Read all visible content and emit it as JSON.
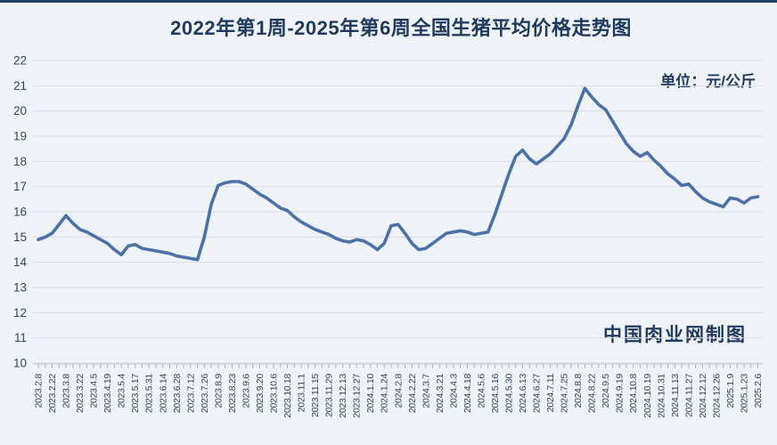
{
  "chart_data": {
    "type": "line",
    "title": "2022年第1周-2025年第6周全国生猪平均价格走势图",
    "unit_label": "单位：元/公斤",
    "watermark": "中国肉业网制图",
    "ylabel": "",
    "xlabel": "",
    "ylim": [
      10,
      22
    ],
    "yticks": [
      22,
      21,
      20,
      19,
      18,
      17,
      16,
      15,
      14,
      13,
      12,
      11,
      10
    ],
    "grid": true,
    "legend": "none",
    "x_label_every": 2,
    "x_labels": [
      "2023.2.8",
      "2023.2.22",
      "2023.3.8",
      "2023.3.22",
      "2023.4.5",
      "2023.4.19",
      "2023.5.4",
      "2023.5.17",
      "2023.5.31",
      "2023.6.14",
      "2023.6.28",
      "2023.7.12",
      "2023.7.26",
      "2023.8.9",
      "2023.8.23",
      "2023.9.6",
      "2023.9.20",
      "2023.10.6",
      "2023.10.18",
      "2023.11.1",
      "2023.11.15",
      "2023.11.29",
      "2023.12.13",
      "2023.12.27",
      "2024.1.10",
      "2024.1.24",
      "2024.2.8",
      "2024.2.22",
      "2024.3.7",
      "2024.3.21",
      "2024.4.3",
      "2024.4.18",
      "2024.5.6",
      "2024.5.16",
      "2024.5.30",
      "2024.6.13",
      "2024.6.27",
      "2024.7.11",
      "2024.7.25",
      "2024.8.8",
      "2024.8.22",
      "2024.9.5",
      "2024.9.19",
      "2024.10.8",
      "2024.10.19",
      "2024.10.31",
      "2024.11.13",
      "2024.11.27",
      "2024.12.12",
      "2024.12.26",
      "2025.1.9",
      "2025.1.23",
      "2025.2.6"
    ],
    "series": [
      {
        "name": "全国生猪平均价格",
        "unit": "元/公斤",
        "values": [
          14.9,
          15.0,
          15.15,
          15.5,
          15.85,
          15.55,
          15.3,
          15.2,
          15.05,
          14.9,
          14.75,
          14.5,
          14.3,
          14.65,
          14.7,
          14.55,
          14.5,
          14.45,
          14.4,
          14.35,
          14.25,
          14.2,
          14.15,
          14.1,
          15.0,
          16.3,
          17.05,
          17.15,
          17.2,
          17.2,
          17.1,
          16.9,
          16.7,
          16.55,
          16.35,
          16.15,
          16.05,
          15.8,
          15.6,
          15.45,
          15.3,
          15.2,
          15.1,
          14.95,
          14.85,
          14.8,
          14.9,
          14.85,
          14.7,
          14.5,
          14.75,
          15.45,
          15.5,
          15.15,
          14.75,
          14.5,
          14.55,
          14.75,
          14.95,
          15.15,
          15.2,
          15.25,
          15.2,
          15.1,
          15.15,
          15.2,
          15.9,
          16.7,
          17.5,
          18.2,
          18.45,
          18.1,
          17.9,
          18.1,
          18.3,
          18.6,
          18.9,
          19.45,
          20.2,
          20.9,
          20.55,
          20.25,
          20.05,
          19.6,
          19.15,
          18.7,
          18.4,
          18.2,
          18.35,
          18.05,
          17.8,
          17.5,
          17.3,
          17.05,
          17.1,
          16.8,
          16.55,
          16.4,
          16.3,
          16.2,
          16.55,
          16.5,
          16.35,
          16.55,
          16.6
        ]
      }
    ],
    "colors": {
      "line": "#4a72a8",
      "title_text": "#1f3a5f",
      "axis_text": "#39455a",
      "grid": "#d9dde3",
      "axis_line": "#c7cdd6",
      "tick": "#a9b2bf",
      "background": "#eff2f6",
      "top_border": "#1e3f68"
    }
  }
}
